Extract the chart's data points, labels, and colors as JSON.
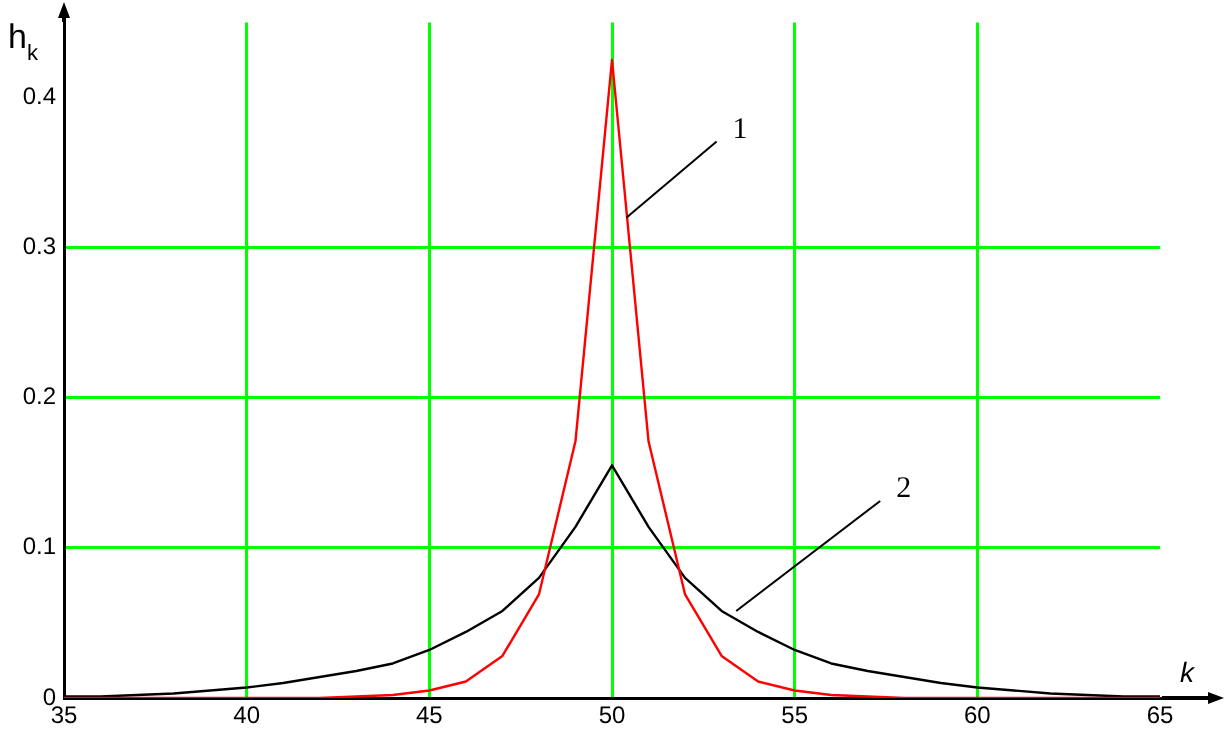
{
  "chart_data": {
    "type": "line",
    "xlabel": "k",
    "ylabel": "h$_{k}$",
    "x": [
      35,
      36,
      37,
      38,
      39,
      40,
      41,
      42,
      43,
      44,
      45,
      46,
      47,
      48,
      49,
      50,
      51,
      52,
      53,
      54,
      55,
      56,
      57,
      58,
      59,
      60,
      61,
      62,
      63,
      64,
      65
    ],
    "series": [
      {
        "color": "#ff0000",
        "values": [
          0,
          0,
          0,
          0,
          0,
          0,
          0,
          0,
          0.001,
          0.002,
          0.005,
          0.011,
          0.028,
          0.069,
          0.171,
          0.425,
          0.171,
          0.069,
          0.028,
          0.011,
          0.005,
          0.002,
          0.001,
          0,
          0,
          0,
          0,
          0,
          0,
          0,
          0
        ]
      },
      {
        "color": "#000000",
        "values": [
          0.001,
          0.001,
          0.002,
          0.003,
          0.005,
          0.007,
          0.01,
          0.014,
          0.018,
          0.023,
          0.032,
          0.044,
          0.058,
          0.08,
          0.114,
          0.155,
          0.114,
          0.08,
          0.058,
          0.044,
          0.032,
          0.023,
          0.018,
          0.014,
          0.01,
          0.007,
          0.005,
          0.003,
          0.002,
          0.001,
          0.001
        ]
      }
    ],
    "xlim": [
      35,
      65
    ],
    "xticks": [
      35,
      40,
      45,
      50,
      55,
      60,
      65
    ],
    "ylim": [
      0,
      0.45
    ],
    "yticks": [
      0,
      0.1,
      0.2,
      0.3,
      0.4
    ],
    "grid": true,
    "annotations": [
      {
        "text": "1",
        "x": 50.4,
        "y": 0.32
      },
      {
        "text": "2",
        "x": 53.4,
        "y": 0.058
      }
    ]
  }
}
